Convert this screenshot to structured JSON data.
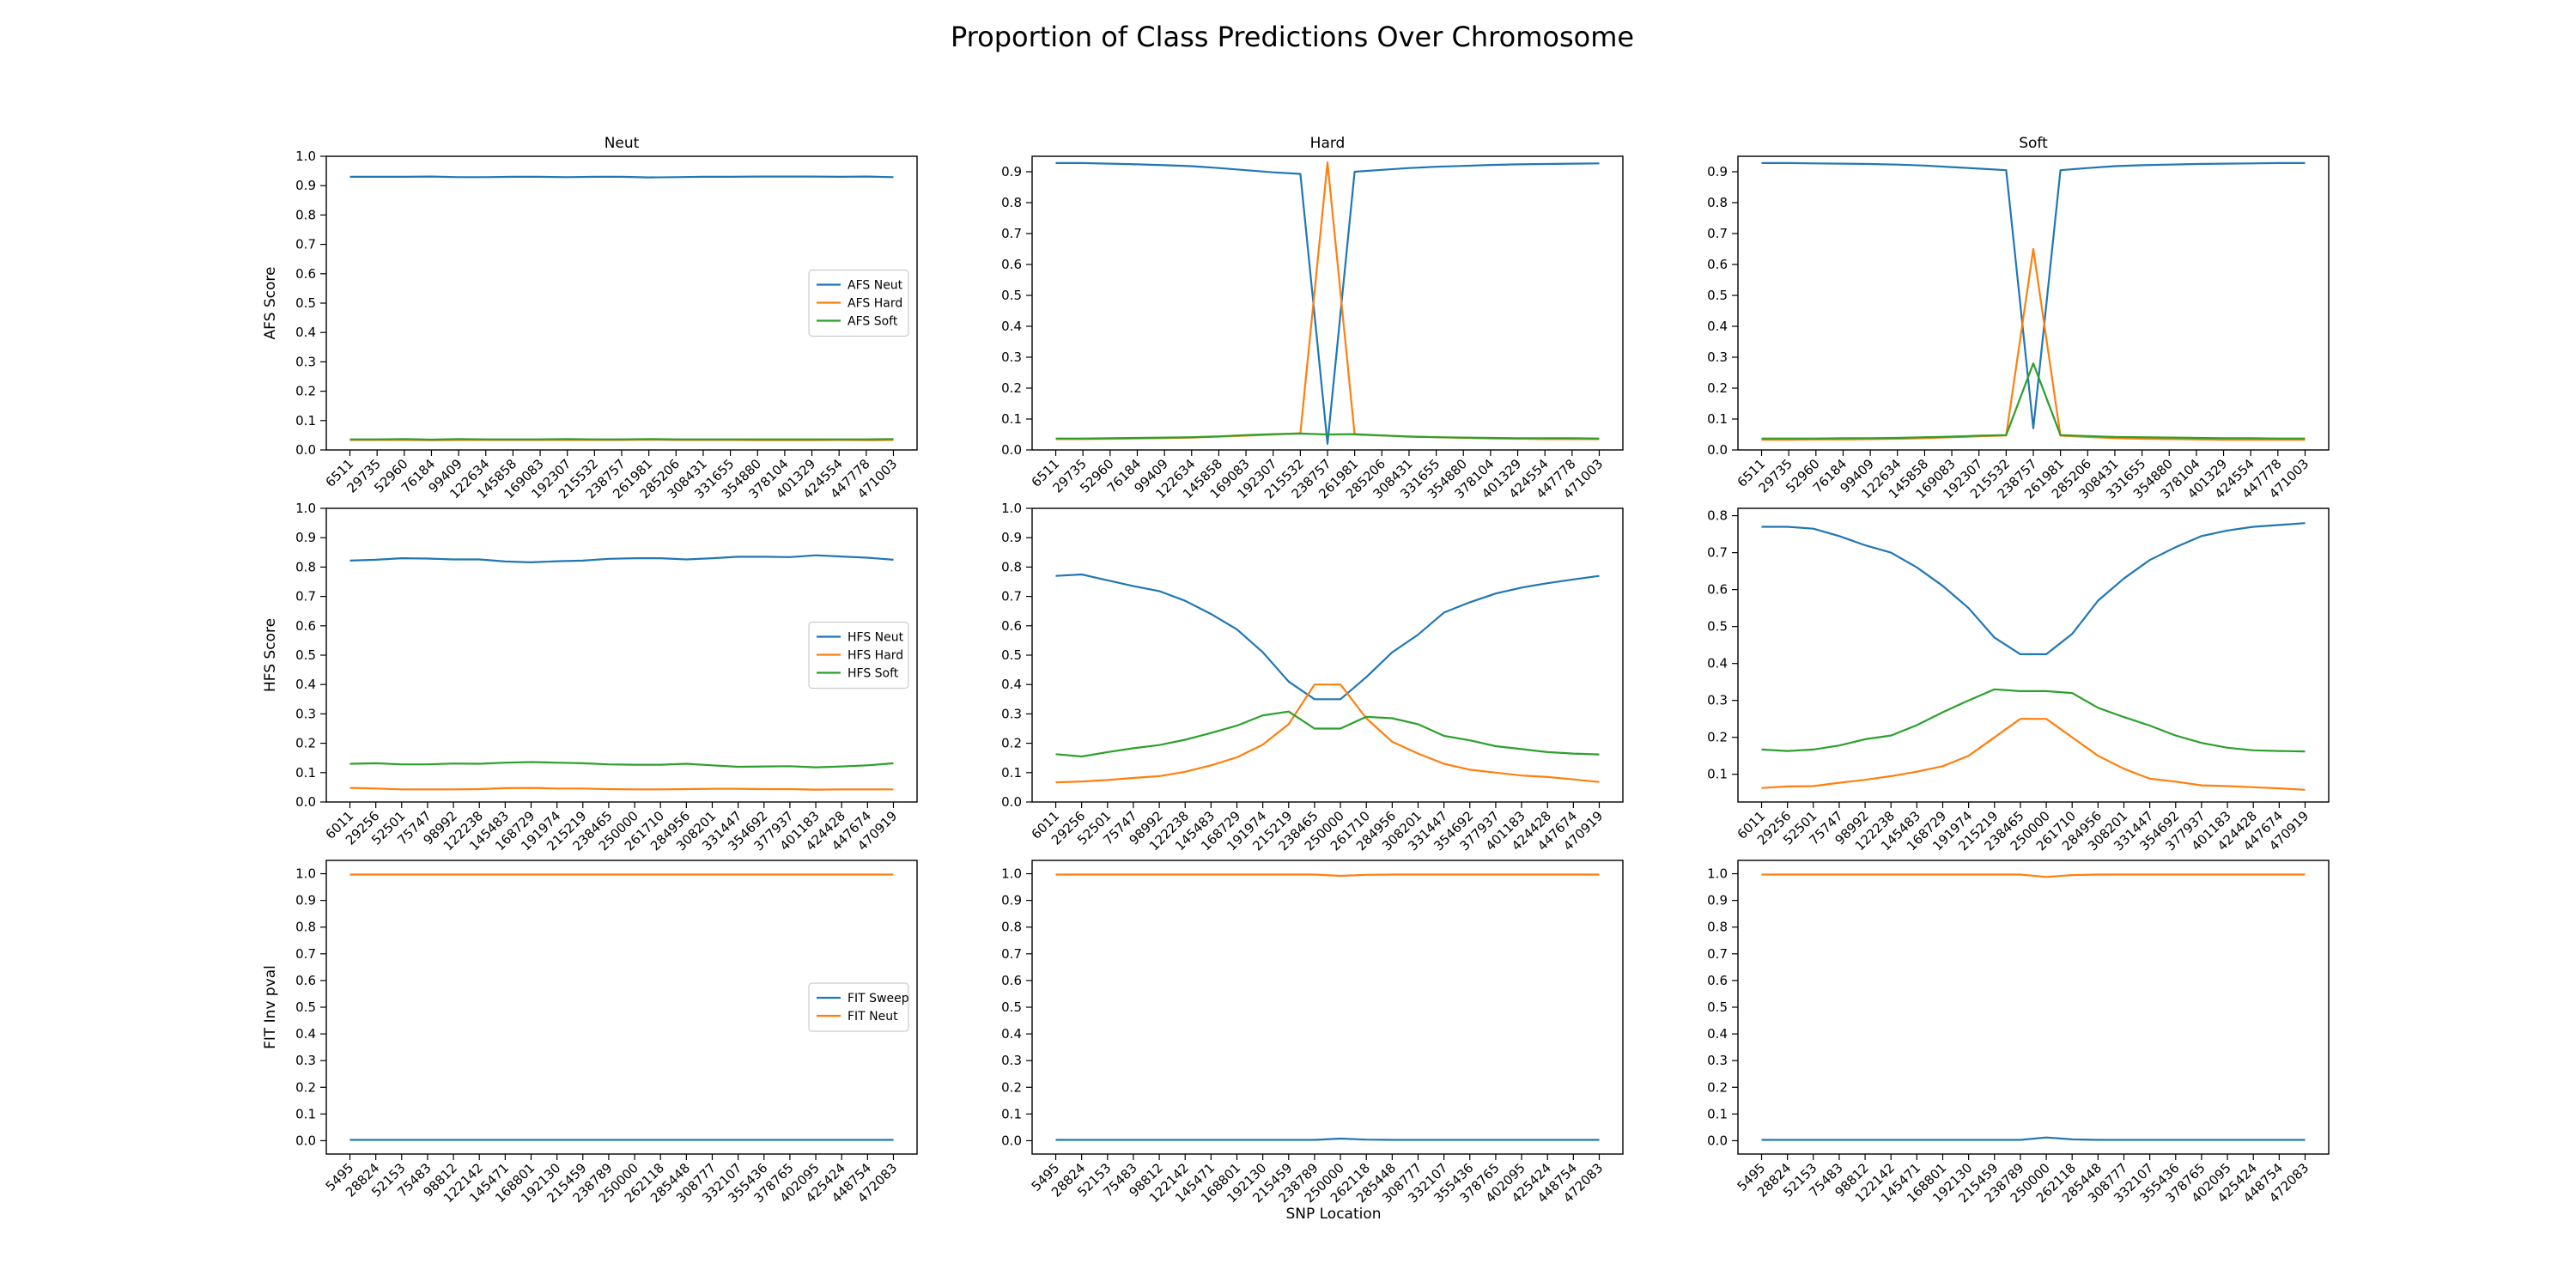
{
  "figure": {
    "title": "Proportion of Class Predictions Over Chromosome",
    "xlabel": "SNP Location"
  },
  "colors": {
    "blue": "#1f77b4",
    "orange": "#ff7f0e",
    "green": "#2ca02c"
  },
  "chart_data": [
    {
      "type": "line",
      "row": 0,
      "col": 0,
      "title": "Neut",
      "ylabel": "AFS Score",
      "ylim": [
        0,
        1.0
      ],
      "yticks": [
        0,
        0.1,
        0.2,
        0.3,
        0.4,
        0.5,
        0.6,
        0.7,
        0.8,
        0.9,
        1.0
      ],
      "categories": [
        "6511",
        "29735",
        "52960",
        "76184",
        "99409",
        "122634",
        "145858",
        "169083",
        "192307",
        "215532",
        "238757",
        "261981",
        "285206",
        "308431",
        "331655",
        "354880",
        "378104",
        "401329",
        "424554",
        "447778",
        "471003"
      ],
      "legend": true,
      "series": [
        {
          "name": "AFS Neut",
          "color": "blue",
          "values": [
            0.93,
            0.93,
            0.93,
            0.931,
            0.929,
            0.929,
            0.93,
            0.93,
            0.929,
            0.93,
            0.93,
            0.928,
            0.929,
            0.93,
            0.93,
            0.931,
            0.931,
            0.931,
            0.93,
            0.931,
            0.929
          ]
        },
        {
          "name": "AFS Hard",
          "color": "orange",
          "values": [
            0.034,
            0.034,
            0.034,
            0.033,
            0.034,
            0.034,
            0.034,
            0.034,
            0.034,
            0.034,
            0.034,
            0.035,
            0.034,
            0.034,
            0.034,
            0.033,
            0.033,
            0.033,
            0.034,
            0.033,
            0.034
          ]
        },
        {
          "name": "AFS Soft",
          "color": "green",
          "values": [
            0.036,
            0.036,
            0.037,
            0.035,
            0.037,
            0.036,
            0.036,
            0.036,
            0.037,
            0.036,
            0.036,
            0.037,
            0.036,
            0.036,
            0.036,
            0.036,
            0.036,
            0.036,
            0.036,
            0.036,
            0.037
          ]
        }
      ]
    },
    {
      "type": "line",
      "row": 0,
      "col": 1,
      "title": "Hard",
      "ylabel": "",
      "ylim": [
        0,
        0.95
      ],
      "yticks": [
        0,
        0.1,
        0.2,
        0.3,
        0.4,
        0.5,
        0.6,
        0.7,
        0.8,
        0.9
      ],
      "categories": [
        "6511",
        "29735",
        "52960",
        "76184",
        "99409",
        "122634",
        "145858",
        "169083",
        "192307",
        "215532",
        "238757",
        "261981",
        "285206",
        "308431",
        "331655",
        "354880",
        "378104",
        "401329",
        "424554",
        "447778",
        "471003"
      ],
      "legend": false,
      "series": [
        {
          "name": "AFS Neut",
          "color": "blue",
          "values": [
            0.928,
            0.928,
            0.926,
            0.924,
            0.921,
            0.918,
            0.912,
            0.905,
            0.898,
            0.893,
            0.02,
            0.9,
            0.906,
            0.912,
            0.916,
            0.919,
            0.922,
            0.924,
            0.925,
            0.926,
            0.927
          ]
        },
        {
          "name": "AFS Hard",
          "color": "orange",
          "values": [
            0.035,
            0.035,
            0.036,
            0.037,
            0.038,
            0.04,
            0.043,
            0.046,
            0.05,
            0.054,
            0.93,
            0.05,
            0.047,
            0.044,
            0.041,
            0.039,
            0.037,
            0.036,
            0.035,
            0.035,
            0.035
          ]
        },
        {
          "name": "AFS Soft",
          "color": "green",
          "values": [
            0.037,
            0.037,
            0.038,
            0.039,
            0.04,
            0.041,
            0.044,
            0.048,
            0.051,
            0.053,
            0.05,
            0.051,
            0.047,
            0.043,
            0.041,
            0.04,
            0.039,
            0.038,
            0.038,
            0.038,
            0.037
          ]
        }
      ]
    },
    {
      "type": "line",
      "row": 0,
      "col": 2,
      "title": "Soft",
      "ylabel": "",
      "ylim": [
        0,
        0.95
      ],
      "yticks": [
        0,
        0.1,
        0.2,
        0.3,
        0.4,
        0.5,
        0.6,
        0.7,
        0.8,
        0.9
      ],
      "categories": [
        "6511",
        "29735",
        "52960",
        "76184",
        "99409",
        "122634",
        "145858",
        "169083",
        "192307",
        "215532",
        "238757",
        "261981",
        "285206",
        "308431",
        "331655",
        "354880",
        "378104",
        "401329",
        "424554",
        "447778",
        "471003"
      ],
      "legend": false,
      "series": [
        {
          "name": "AFS Neut",
          "color": "blue",
          "values": [
            0.928,
            0.928,
            0.927,
            0.926,
            0.925,
            0.923,
            0.92,
            0.915,
            0.91,
            0.905,
            0.07,
            0.905,
            0.912,
            0.918,
            0.921,
            0.923,
            0.925,
            0.926,
            0.927,
            0.928,
            0.928
          ]
        },
        {
          "name": "AFS Hard",
          "color": "orange",
          "values": [
            0.033,
            0.033,
            0.034,
            0.034,
            0.035,
            0.036,
            0.038,
            0.041,
            0.044,
            0.047,
            0.65,
            0.046,
            0.042,
            0.038,
            0.036,
            0.035,
            0.034,
            0.033,
            0.033,
            0.033,
            0.033
          ]
        },
        {
          "name": "AFS Soft",
          "color": "green",
          "values": [
            0.037,
            0.037,
            0.037,
            0.038,
            0.038,
            0.039,
            0.041,
            0.043,
            0.046,
            0.048,
            0.28,
            0.048,
            0.045,
            0.042,
            0.041,
            0.04,
            0.039,
            0.038,
            0.038,
            0.037,
            0.037
          ]
        }
      ]
    },
    {
      "type": "line",
      "row": 1,
      "col": 0,
      "title": "",
      "ylabel": "HFS Score",
      "ylim": [
        0,
        1.0
      ],
      "yticks": [
        0,
        0.1,
        0.2,
        0.3,
        0.4,
        0.5,
        0.6,
        0.7,
        0.8,
        0.9,
        1.0
      ],
      "categories": [
        "6011",
        "29256",
        "52501",
        "75747",
        "98992",
        "122238",
        "145483",
        "168729",
        "191974",
        "215219",
        "238465",
        "250000",
        "261710",
        "284956",
        "308201",
        "331447",
        "354692",
        "377937",
        "401183",
        "424428",
        "447674",
        "470919"
      ],
      "legend": true,
      "series": [
        {
          "name": "HFS Neut",
          "color": "blue",
          "values": [
            0.822,
            0.825,
            0.83,
            0.829,
            0.826,
            0.826,
            0.819,
            0.816,
            0.82,
            0.822,
            0.828,
            0.83,
            0.83,
            0.826,
            0.83,
            0.835,
            0.835,
            0.834,
            0.84,
            0.836,
            0.832,
            0.825
          ]
        },
        {
          "name": "HFS Hard",
          "color": "orange",
          "values": [
            0.048,
            0.046,
            0.043,
            0.043,
            0.043,
            0.044,
            0.047,
            0.048,
            0.046,
            0.046,
            0.044,
            0.043,
            0.043,
            0.044,
            0.045,
            0.045,
            0.044,
            0.044,
            0.042,
            0.043,
            0.043,
            0.043
          ]
        },
        {
          "name": "HFS Soft",
          "color": "green",
          "values": [
            0.13,
            0.132,
            0.128,
            0.128,
            0.131,
            0.13,
            0.134,
            0.136,
            0.134,
            0.132,
            0.128,
            0.127,
            0.127,
            0.13,
            0.125,
            0.12,
            0.121,
            0.122,
            0.118,
            0.121,
            0.125,
            0.132
          ]
        }
      ]
    },
    {
      "type": "line",
      "row": 1,
      "col": 1,
      "title": "",
      "ylabel": "",
      "ylim": [
        0,
        1.0
      ],
      "yticks": [
        0,
        0.1,
        0.2,
        0.3,
        0.4,
        0.5,
        0.6,
        0.7,
        0.8,
        0.9,
        1.0
      ],
      "categories": [
        "6011",
        "29256",
        "52501",
        "75747",
        "98992",
        "122238",
        "145483",
        "168729",
        "191974",
        "215219",
        "238465",
        "250000",
        "261710",
        "284956",
        "308201",
        "331447",
        "354692",
        "377937",
        "401183",
        "424428",
        "447674",
        "470919"
      ],
      "legend": false,
      "series": [
        {
          "name": "HFS Neut",
          "color": "blue",
          "values": [
            0.77,
            0.775,
            0.755,
            0.735,
            0.718,
            0.685,
            0.64,
            0.588,
            0.51,
            0.41,
            0.35,
            0.35,
            0.425,
            0.51,
            0.57,
            0.645,
            0.68,
            0.71,
            0.73,
            0.745,
            0.758,
            0.77
          ]
        },
        {
          "name": "HFS Hard",
          "color": "orange",
          "values": [
            0.067,
            0.07,
            0.075,
            0.082,
            0.088,
            0.103,
            0.125,
            0.152,
            0.195,
            0.265,
            0.4,
            0.4,
            0.285,
            0.205,
            0.165,
            0.13,
            0.11,
            0.1,
            0.09,
            0.085,
            0.077,
            0.068
          ]
        },
        {
          "name": "HFS Soft",
          "color": "green",
          "values": [
            0.163,
            0.155,
            0.17,
            0.183,
            0.194,
            0.212,
            0.235,
            0.26,
            0.295,
            0.308,
            0.25,
            0.25,
            0.29,
            0.285,
            0.265,
            0.225,
            0.21,
            0.19,
            0.18,
            0.17,
            0.165,
            0.162
          ]
        }
      ]
    },
    {
      "type": "line",
      "row": 1,
      "col": 2,
      "title": "",
      "ylabel": "",
      "ylim": [
        0.025,
        0.82
      ],
      "yticks": [
        0.1,
        0.2,
        0.3,
        0.4,
        0.5,
        0.6,
        0.7,
        0.8
      ],
      "categories": [
        "6011",
        "29256",
        "52501",
        "75747",
        "98992",
        "122238",
        "145483",
        "168729",
        "191974",
        "215219",
        "238465",
        "250000",
        "261710",
        "284956",
        "308201",
        "331447",
        "354692",
        "377937",
        "401183",
        "424428",
        "447674",
        "470919"
      ],
      "legend": false,
      "series": [
        {
          "name": "HFS Neut",
          "color": "blue",
          "values": [
            0.77,
            0.77,
            0.765,
            0.745,
            0.72,
            0.7,
            0.66,
            0.61,
            0.55,
            0.47,
            0.425,
            0.425,
            0.48,
            0.57,
            0.63,
            0.68,
            0.715,
            0.745,
            0.76,
            0.77,
            0.775,
            0.78
          ]
        },
        {
          "name": "HFS Hard",
          "color": "orange",
          "values": [
            0.063,
            0.067,
            0.068,
            0.077,
            0.085,
            0.095,
            0.107,
            0.122,
            0.15,
            0.2,
            0.25,
            0.25,
            0.2,
            0.15,
            0.115,
            0.088,
            0.08,
            0.07,
            0.068,
            0.065,
            0.062,
            0.058
          ]
        },
        {
          "name": "HFS Soft",
          "color": "green",
          "values": [
            0.167,
            0.163,
            0.167,
            0.178,
            0.195,
            0.205,
            0.233,
            0.268,
            0.3,
            0.33,
            0.325,
            0.325,
            0.32,
            0.28,
            0.255,
            0.232,
            0.205,
            0.185,
            0.172,
            0.165,
            0.163,
            0.162
          ]
        }
      ]
    },
    {
      "type": "line",
      "row": 2,
      "col": 0,
      "title": "",
      "ylabel": "FIT Inv pval",
      "ylim": [
        -0.05,
        1.05
      ],
      "yticks": [
        0,
        0.1,
        0.2,
        0.3,
        0.4,
        0.5,
        0.6,
        0.7,
        0.8,
        0.9,
        1.0
      ],
      "categories": [
        "5495",
        "28824",
        "52153",
        "75483",
        "98812",
        "122142",
        "145471",
        "168801",
        "192130",
        "215459",
        "238789",
        "250000",
        "262118",
        "285448",
        "308777",
        "332107",
        "355436",
        "378765",
        "402095",
        "425424",
        "448754",
        "472083"
      ],
      "legend": true,
      "series": [
        {
          "name": "FIT Sweep",
          "color": "blue",
          "values": [
            0.003,
            0.003,
            0.003,
            0.003,
            0.003,
            0.003,
            0.003,
            0.003,
            0.003,
            0.003,
            0.003,
            0.003,
            0.003,
            0.003,
            0.003,
            0.003,
            0.003,
            0.003,
            0.003,
            0.003,
            0.003,
            0.003
          ]
        },
        {
          "name": "FIT Neut",
          "color": "orange",
          "values": [
            0.997,
            0.997,
            0.997,
            0.997,
            0.997,
            0.997,
            0.997,
            0.997,
            0.997,
            0.997,
            0.997,
            0.997,
            0.997,
            0.997,
            0.997,
            0.997,
            0.997,
            0.997,
            0.997,
            0.997,
            0.997,
            0.997
          ]
        }
      ]
    },
    {
      "type": "line",
      "row": 2,
      "col": 1,
      "title": "",
      "ylabel": "",
      "ylim": [
        -0.05,
        1.05
      ],
      "yticks": [
        0,
        0.1,
        0.2,
        0.3,
        0.4,
        0.5,
        0.6,
        0.7,
        0.8,
        0.9,
        1.0
      ],
      "categories": [
        "5495",
        "28824",
        "52153",
        "75483",
        "98812",
        "122142",
        "145471",
        "168801",
        "192130",
        "215459",
        "238789",
        "250000",
        "262118",
        "285448",
        "308777",
        "332107",
        "355436",
        "378765",
        "402095",
        "425424",
        "448754",
        "472083"
      ],
      "legend": false,
      "series": [
        {
          "name": "FIT Sweep",
          "color": "blue",
          "values": [
            0.003,
            0.003,
            0.003,
            0.003,
            0.003,
            0.003,
            0.003,
            0.003,
            0.003,
            0.003,
            0.003,
            0.008,
            0.004,
            0.003,
            0.003,
            0.003,
            0.003,
            0.003,
            0.003,
            0.003,
            0.003,
            0.003
          ]
        },
        {
          "name": "FIT Neut",
          "color": "orange",
          "values": [
            0.997,
            0.997,
            0.997,
            0.997,
            0.997,
            0.997,
            0.997,
            0.997,
            0.997,
            0.997,
            0.997,
            0.992,
            0.996,
            0.997,
            0.997,
            0.997,
            0.997,
            0.997,
            0.997,
            0.997,
            0.997,
            0.997
          ]
        }
      ]
    },
    {
      "type": "line",
      "row": 2,
      "col": 2,
      "title": "",
      "ylabel": "",
      "ylim": [
        -0.05,
        1.05
      ],
      "yticks": [
        0,
        0.1,
        0.2,
        0.3,
        0.4,
        0.5,
        0.6,
        0.7,
        0.8,
        0.9,
        1.0
      ],
      "categories": [
        "5495",
        "28824",
        "52153",
        "75483",
        "98812",
        "122142",
        "145471",
        "168801",
        "192130",
        "215459",
        "238789",
        "250000",
        "262118",
        "285448",
        "308777",
        "332107",
        "355436",
        "378765",
        "402095",
        "425424",
        "448754",
        "472083"
      ],
      "legend": false,
      "series": [
        {
          "name": "FIT Sweep",
          "color": "blue",
          "values": [
            0.003,
            0.003,
            0.003,
            0.003,
            0.003,
            0.003,
            0.003,
            0.003,
            0.003,
            0.003,
            0.003,
            0.012,
            0.005,
            0.003,
            0.003,
            0.003,
            0.003,
            0.003,
            0.003,
            0.003,
            0.003,
            0.003
          ]
        },
        {
          "name": "FIT Neut",
          "color": "orange",
          "values": [
            0.997,
            0.997,
            0.997,
            0.997,
            0.997,
            0.997,
            0.997,
            0.997,
            0.997,
            0.997,
            0.997,
            0.988,
            0.995,
            0.997,
            0.997,
            0.997,
            0.997,
            0.997,
            0.997,
            0.997,
            0.997,
            0.997
          ]
        }
      ]
    }
  ]
}
